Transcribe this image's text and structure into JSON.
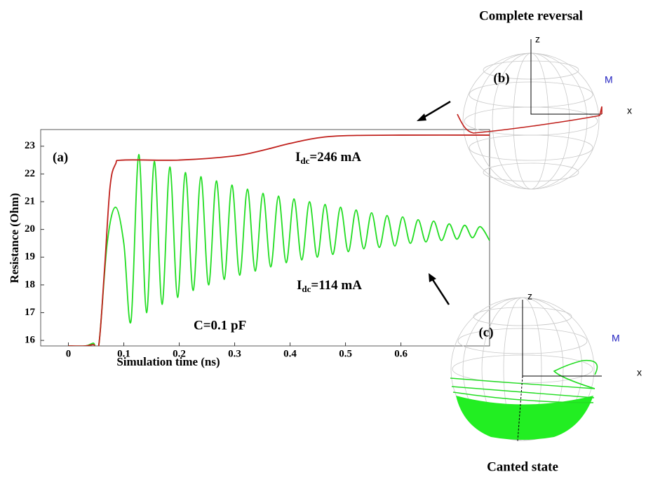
{
  "chart_data": {
    "type": "line",
    "x_label": "Simulation time (ns)",
    "y_label": "Resistance (Ohm)",
    "xlim": [
      -0.05,
      0.76
    ],
    "ylim": [
      15.8,
      23.6
    ],
    "xticks": [
      0,
      0.1,
      0.2,
      0.3,
      0.4,
      0.5,
      0.6
    ],
    "yticks": [
      16,
      17,
      18,
      19,
      20,
      21,
      22,
      23
    ],
    "series": [
      {
        "name": "I_dc=246 mA",
        "color": "#c0201c",
        "x": [
          0,
          0.03,
          0.045,
          0.055,
          0.065,
          0.075,
          0.085,
          0.1,
          0.2,
          0.3,
          0.35,
          0.4,
          0.45,
          0.5,
          0.6,
          0.76
        ],
        "values": [
          15.8,
          15.8,
          15.85,
          15.85,
          18.5,
          21.5,
          22.35,
          22.5,
          22.5,
          22.65,
          22.85,
          23.1,
          23.3,
          23.38,
          23.4,
          23.4
        ]
      },
      {
        "name": "I_dc=114 mA",
        "color": "#22dd22",
        "x": [
          0,
          0.03,
          0.045,
          0.055,
          0.07,
          0.085,
          0.1,
          0.113,
          0.127,
          0.141,
          0.155,
          0.169,
          0.183,
          0.197,
          0.211,
          0.225,
          0.239,
          0.253,
          0.267,
          0.281,
          0.295,
          0.309,
          0.323,
          0.337,
          0.351,
          0.365,
          0.379,
          0.393,
          0.407,
          0.421,
          0.435,
          0.449,
          0.463,
          0.477,
          0.491,
          0.505,
          0.519,
          0.533,
          0.547,
          0.561,
          0.575,
          0.589,
          0.603,
          0.617,
          0.631,
          0.645,
          0.659,
          0.673,
          0.687,
          0.701,
          0.715,
          0.729,
          0.743,
          0.76
        ],
        "values": [
          15.8,
          15.8,
          15.9,
          15.85,
          19.5,
          20.8,
          19.5,
          16.7,
          22.7,
          17.0,
          22.45,
          17.3,
          22.25,
          17.55,
          22.05,
          17.8,
          21.9,
          18.0,
          21.75,
          18.2,
          21.6,
          18.35,
          21.45,
          18.5,
          21.3,
          18.65,
          21.2,
          18.8,
          21.1,
          18.9,
          21.0,
          19.0,
          20.9,
          19.1,
          20.8,
          19.2,
          20.7,
          19.3,
          20.6,
          19.35,
          20.5,
          19.4,
          20.45,
          19.5,
          20.35,
          19.55,
          20.3,
          19.6,
          20.2,
          19.65,
          20.15,
          19.7,
          20.1,
          19.6
        ]
      }
    ],
    "annotations": {
      "panel_a": "(a)",
      "label_246": {
        "main": "I",
        "sub": "dc",
        "rest": "=246 mA"
      },
      "label_114": {
        "main": "I",
        "sub": "dc",
        "rest": "=114 mA"
      },
      "capacitance": "C=0.1 pF"
    }
  },
  "spheres": {
    "b": {
      "title": "Complete reversal",
      "panel": "(b)",
      "z": "z",
      "x": "x",
      "m": "M"
    },
    "c": {
      "title": "Canted state",
      "panel": "(c)",
      "z": "z",
      "x": "x",
      "m": "M"
    }
  }
}
